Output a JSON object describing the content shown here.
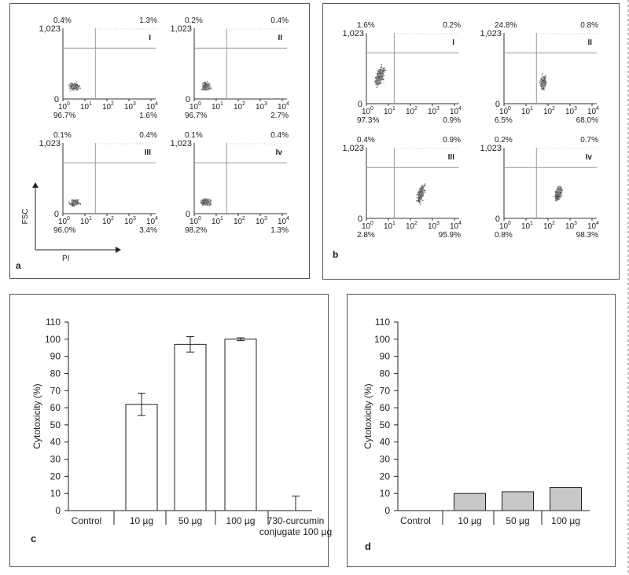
{
  "chart_data": [
    {
      "panel": "a",
      "type": "scatter",
      "panel_label": "a",
      "xlabel": "PI",
      "ylabel": "FSC",
      "plots": [
        {
          "roman": "I",
          "ytop": "1,023",
          "ybottom": "0",
          "quadrants": {
            "ul": "0.4%",
            "ur": "1.3%",
            "ll": "96.7%",
            "lr": "1.6%"
          }
        },
        {
          "roman": "II",
          "ytop": "1,023",
          "ybottom": "0",
          "quadrants": {
            "ul": "0.2%",
            "ur": "0.4%",
            "ll": "96.7%",
            "lr": "2.7%"
          }
        },
        {
          "roman": "III",
          "ytop": "1,023",
          "ybottom": "0",
          "quadrants": {
            "ul": "0.1%",
            "ur": "0.4%",
            "ll": "96.0%",
            "lr": "3.4%"
          }
        },
        {
          "roman": "Iv",
          "ytop": "1,023",
          "ybottom": "0",
          "quadrants": {
            "ul": "0.1%",
            "ur": "0.4%",
            "ll": "98.2%",
            "lr": "1.3%"
          }
        }
      ],
      "x_ticks": [
        "10",
        "10",
        "10",
        "10",
        "10"
      ],
      "x_tick_exponents": [
        "0",
        "1",
        "2",
        "3",
        "4"
      ]
    },
    {
      "panel": "b",
      "type": "scatter",
      "panel_label": "b",
      "plots": [
        {
          "roman": "I",
          "ytop": "1,023",
          "ybottom": "0",
          "quadrants": {
            "ul": "1.6%",
            "ur": "0.2%",
            "ll": "97.3%",
            "lr": "0.9%"
          }
        },
        {
          "roman": "II",
          "ytop": "1,023",
          "ybottom": "0",
          "quadrants": {
            "ul": "24.8%",
            "ur": "0.8%",
            "ll": "6.5%",
            "lr": "68.0%"
          }
        },
        {
          "roman": "III",
          "ytop": "1,023",
          "ybottom": "0",
          "quadrants": {
            "ul": "0.4%",
            "ur": "0.9%",
            "ll": "2.8%",
            "lr": "95.9%"
          }
        },
        {
          "roman": "Iv",
          "ytop": "1,023",
          "ybottom": "0",
          "quadrants": {
            "ul": "0.2%",
            "ur": "0.7%",
            "ll": "0.8%",
            "lr": "98.3%"
          }
        }
      ],
      "x_ticks": [
        "10",
        "10",
        "10",
        "10",
        "10"
      ],
      "x_tick_exponents": [
        "0",
        "1",
        "2",
        "3",
        "4"
      ]
    },
    {
      "panel": "c",
      "type": "bar",
      "panel_label": "c",
      "ylabel": "Cytotoxicity (%)",
      "ylim": [
        0,
        110
      ],
      "yticks": [
        0,
        10,
        20,
        30,
        40,
        50,
        60,
        70,
        80,
        90,
        100,
        110
      ],
      "categories": [
        "Control",
        "10 µg",
        "50 µg",
        "100 µg",
        "730-curcumin conjugate 100 µg"
      ],
      "category_lines": [
        [
          "Control"
        ],
        [
          "10 µg"
        ],
        [
          "50 µg"
        ],
        [
          "100 µg"
        ],
        [
          "730-curcumin",
          "conjugate 100 µg"
        ]
      ],
      "values": [
        0,
        62,
        97,
        100,
        0
      ],
      "errors": [
        0,
        6.5,
        4.5,
        0.8,
        8.5
      ],
      "bar_color": "#ffffff"
    },
    {
      "panel": "d",
      "type": "bar",
      "panel_label": "d",
      "ylabel": "Cytotoxicity (%)",
      "ylim": [
        0,
        110
      ],
      "yticks": [
        0,
        10,
        20,
        30,
        40,
        50,
        60,
        70,
        80,
        90,
        100,
        110
      ],
      "categories": [
        "Control",
        "10 µg",
        "50 µg",
        "100 µg"
      ],
      "category_lines": [
        [
          "Control"
        ],
        [
          "10 µg"
        ],
        [
          "50 µg"
        ],
        [
          "100 µg"
        ]
      ],
      "values": [
        0,
        10,
        11,
        13.5
      ],
      "bar_color": "#c8c8c8"
    }
  ]
}
